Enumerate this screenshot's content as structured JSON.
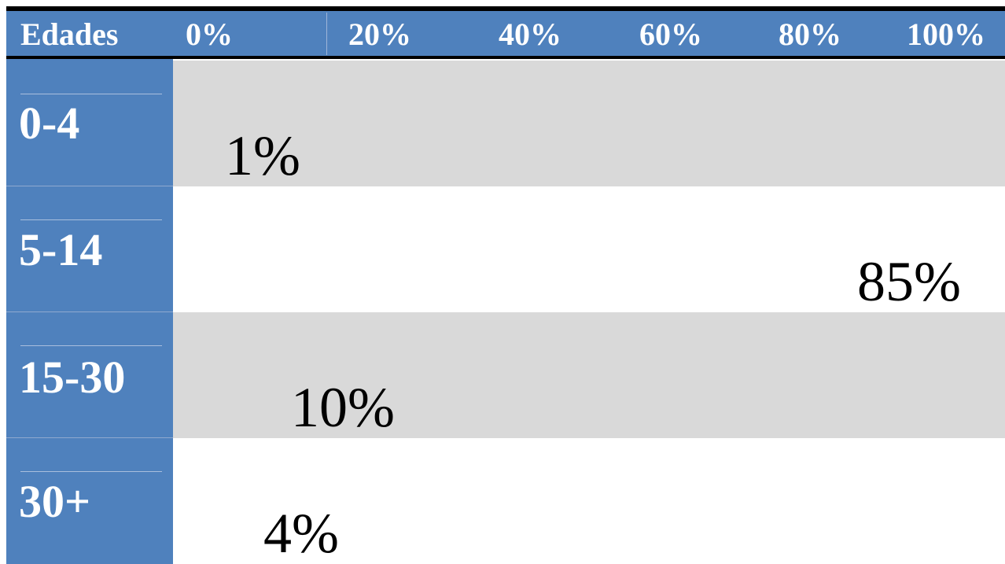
{
  "colors": {
    "header_bg": "#4f81bd",
    "label_col_bg": "#4f81bd",
    "band_gray": "#d9d9d9",
    "band_white": "#ffffff",
    "icon_fill": "#000000",
    "header_text": "#ffffff"
  },
  "icon": "head-silhouette-icon",
  "chart_data": {
    "type": "bar",
    "subtype": "pictogram",
    "xlabel": "Edades",
    "x_ticks": [
      "0%",
      "20%",
      "40%",
      "60%",
      "80%",
      "100%"
    ],
    "xlim": [
      0,
      100
    ],
    "unit_per_icon": 16,
    "categories": [
      "0-4",
      "5-14",
      "15-30",
      "30+"
    ],
    "values": [
      1,
      85,
      10,
      4
    ],
    "value_labels": [
      "1%",
      "85%",
      "10%",
      "4%"
    ],
    "grid": false,
    "legend": "none"
  }
}
